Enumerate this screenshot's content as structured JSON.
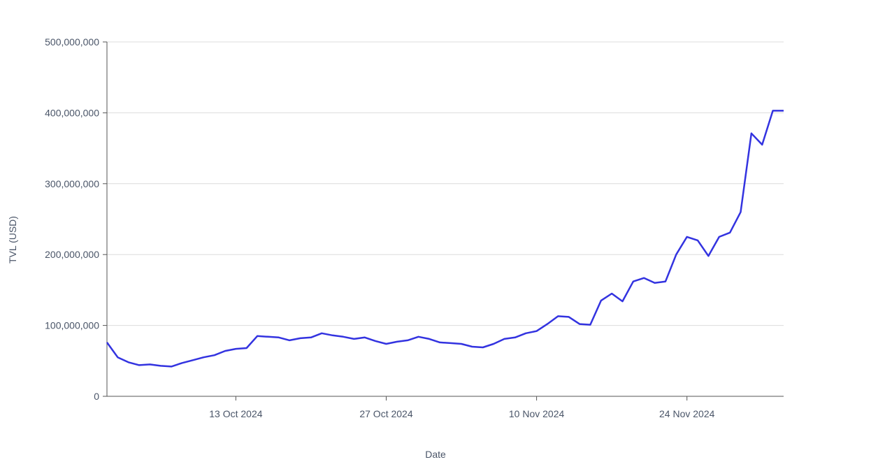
{
  "chart_data": {
    "type": "line",
    "title": "",
    "xlabel": "Date",
    "ylabel": "TVL (USD)",
    "ylim": [
      0,
      500000000
    ],
    "y_ticks": [
      {
        "value": 0,
        "label": "0"
      },
      {
        "value": 100000000,
        "label": "100,000,000"
      },
      {
        "value": 200000000,
        "label": "200,000,000"
      },
      {
        "value": 300000000,
        "label": "300,000,000"
      },
      {
        "value": 400000000,
        "label": "400,000,000"
      },
      {
        "value": 500000000,
        "label": "500,000,000"
      }
    ],
    "x_ticks": [
      {
        "date": "2024-10-13",
        "label": "13 Oct 2024"
      },
      {
        "date": "2024-10-27",
        "label": "27 Oct 2024"
      },
      {
        "date": "2024-11-10",
        "label": "10 Nov 2024"
      },
      {
        "date": "2024-11-24",
        "label": "24 Nov 2024"
      }
    ],
    "xlim": [
      "2024-10-01",
      "2024-12-03"
    ],
    "grid": true,
    "line_color": "#3333e0",
    "series": [
      {
        "x": [
          "2024-10-01",
          "2024-10-02",
          "2024-10-03",
          "2024-10-04",
          "2024-10-05",
          "2024-10-06",
          "2024-10-07",
          "2024-10-08",
          "2024-10-09",
          "2024-10-10",
          "2024-10-11",
          "2024-10-12",
          "2024-10-13",
          "2024-10-14",
          "2024-10-15",
          "2024-10-16",
          "2024-10-17",
          "2024-10-18",
          "2024-10-19",
          "2024-10-20",
          "2024-10-21",
          "2024-10-22",
          "2024-10-23",
          "2024-10-24",
          "2024-10-25",
          "2024-10-26",
          "2024-10-27",
          "2024-10-28",
          "2024-10-29",
          "2024-10-30",
          "2024-10-31",
          "2024-11-01",
          "2024-11-02",
          "2024-11-03",
          "2024-11-04",
          "2024-11-05",
          "2024-11-06",
          "2024-11-07",
          "2024-11-08",
          "2024-11-09",
          "2024-11-10",
          "2024-11-11",
          "2024-11-12",
          "2024-11-13",
          "2024-11-14",
          "2024-11-15",
          "2024-11-16",
          "2024-11-17",
          "2024-11-18",
          "2024-11-19",
          "2024-11-20",
          "2024-11-21",
          "2024-11-22",
          "2024-11-23",
          "2024-11-24",
          "2024-11-25",
          "2024-11-26",
          "2024-11-27",
          "2024-11-28",
          "2024-11-29",
          "2024-11-30",
          "2024-12-01",
          "2024-12-02",
          "2024-12-03"
        ],
        "values": [
          76000000,
          55000000,
          48000000,
          44000000,
          45000000,
          43000000,
          42000000,
          47000000,
          51000000,
          55000000,
          58000000,
          64000000,
          67000000,
          68000000,
          85000000,
          84000000,
          83000000,
          79000000,
          82000000,
          83000000,
          89000000,
          86000000,
          84000000,
          81000000,
          83000000,
          78000000,
          74000000,
          77000000,
          79000000,
          84000000,
          81000000,
          76000000,
          75000000,
          74000000,
          70000000,
          69000000,
          74000000,
          81000000,
          83000000,
          89000000,
          92000000,
          102000000,
          113000000,
          112000000,
          102000000,
          101000000,
          135000000,
          145000000,
          134000000,
          162000000,
          167000000,
          160000000,
          162000000,
          200000000,
          225000000,
          220000000,
          198000000,
          225000000,
          231000000,
          260000000,
          371000000,
          355000000,
          403000000,
          403000000
        ]
      }
    ]
  }
}
